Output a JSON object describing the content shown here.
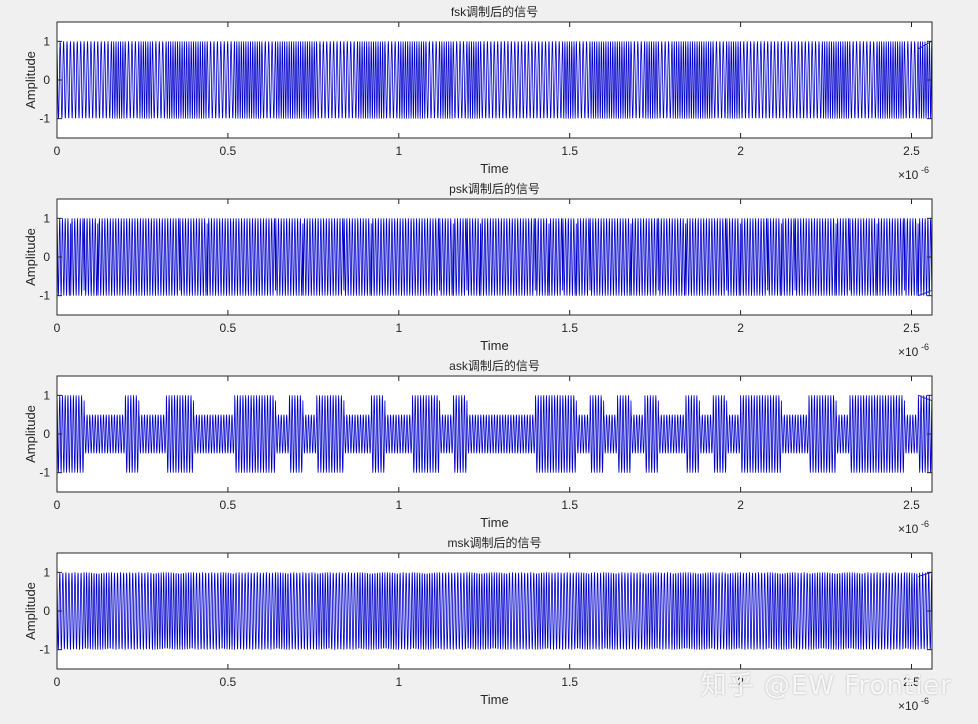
{
  "figure": {
    "background": "#f0f0f0",
    "watermark": "知乎 @EW Frontier"
  },
  "chart_data": [
    {
      "type": "line",
      "title": "fsk调制后的信号",
      "xlabel": "Time",
      "ylabel": "Amplitude",
      "xlim": [
        0,
        2.56
      ],
      "ylim": [
        -1.5,
        1.5
      ],
      "x_scale_label": "×10",
      "x_scale_exponent": "-6",
      "xticks": [
        0,
        0.5,
        1,
        1.5,
        2,
        2.5
      ],
      "xtick_labels": [
        "0",
        "0.5",
        "1",
        "1.5",
        "2",
        "2.5"
      ],
      "yticks": [
        -1,
        0,
        1
      ],
      "ytick_labels": [
        "-1",
        "0",
        "1"
      ],
      "series": [
        {
          "color": "#0000cc",
          "modulation": "fsk",
          "amplitude": 1,
          "bit_count": 64,
          "carrier_cycles_per_bit": [
            4,
            6
          ]
        }
      ]
    },
    {
      "type": "line",
      "title": "psk调制后的信号",
      "xlabel": "Time",
      "ylabel": "Amplitude",
      "xlim": [
        0,
        2.56
      ],
      "ylim": [
        -1.5,
        1.5
      ],
      "x_scale_label": "×10",
      "x_scale_exponent": "-6",
      "xticks": [
        0,
        0.5,
        1,
        1.5,
        2,
        2.5
      ],
      "xtick_labels": [
        "0",
        "0.5",
        "1",
        "1.5",
        "2",
        "2.5"
      ],
      "yticks": [
        -1,
        0,
        1
      ],
      "ytick_labels": [
        "-1",
        "0",
        "1"
      ],
      "series": [
        {
          "color": "#0000cc",
          "modulation": "psk",
          "amplitude": 1,
          "bit_count": 64,
          "carrier_cycles_per_bit": [
            5,
            5
          ]
        }
      ]
    },
    {
      "type": "line",
      "title": "ask调制后的信号",
      "xlabel": "Time",
      "ylabel": "Amplitude",
      "xlim": [
        0,
        2.56
      ],
      "ylim": [
        -1.5,
        1.5
      ],
      "x_scale_label": "×10",
      "x_scale_exponent": "-6",
      "xticks": [
        0,
        0.5,
        1,
        1.5,
        2,
        2.5
      ],
      "xtick_labels": [
        "0",
        "0.5",
        "1",
        "1.5",
        "2",
        "2.5"
      ],
      "yticks": [
        -1,
        0,
        1
      ],
      "ytick_labels": [
        "-1",
        "0",
        "1"
      ],
      "series": [
        {
          "color": "#0000cc",
          "modulation": "ask",
          "amplitude": 1,
          "bit_count": 64,
          "carrier_cycles_per_bit": [
            5,
            5
          ]
        }
      ]
    },
    {
      "type": "line",
      "title": "msk调制后的信号",
      "xlabel": "Time",
      "ylabel": "Amplitude",
      "xlim": [
        0,
        2.56
      ],
      "ylim": [
        -1.5,
        1.5
      ],
      "x_scale_label": "×10",
      "x_scale_exponent": "-6",
      "xticks": [
        0,
        0.5,
        1,
        1.5,
        2,
        2.5
      ],
      "xtick_labels": [
        "0",
        "0.5",
        "1",
        "1.5",
        "2",
        "2.5"
      ],
      "yticks": [
        -1,
        0,
        1
      ],
      "ytick_labels": [
        "-1",
        "0",
        "1"
      ],
      "series": [
        {
          "color": "#0000cc",
          "modulation": "msk",
          "amplitude": 1,
          "bit_count": 64,
          "carrier_cycles_per_bit": [
            4.5,
            5.5
          ]
        }
      ]
    }
  ]
}
